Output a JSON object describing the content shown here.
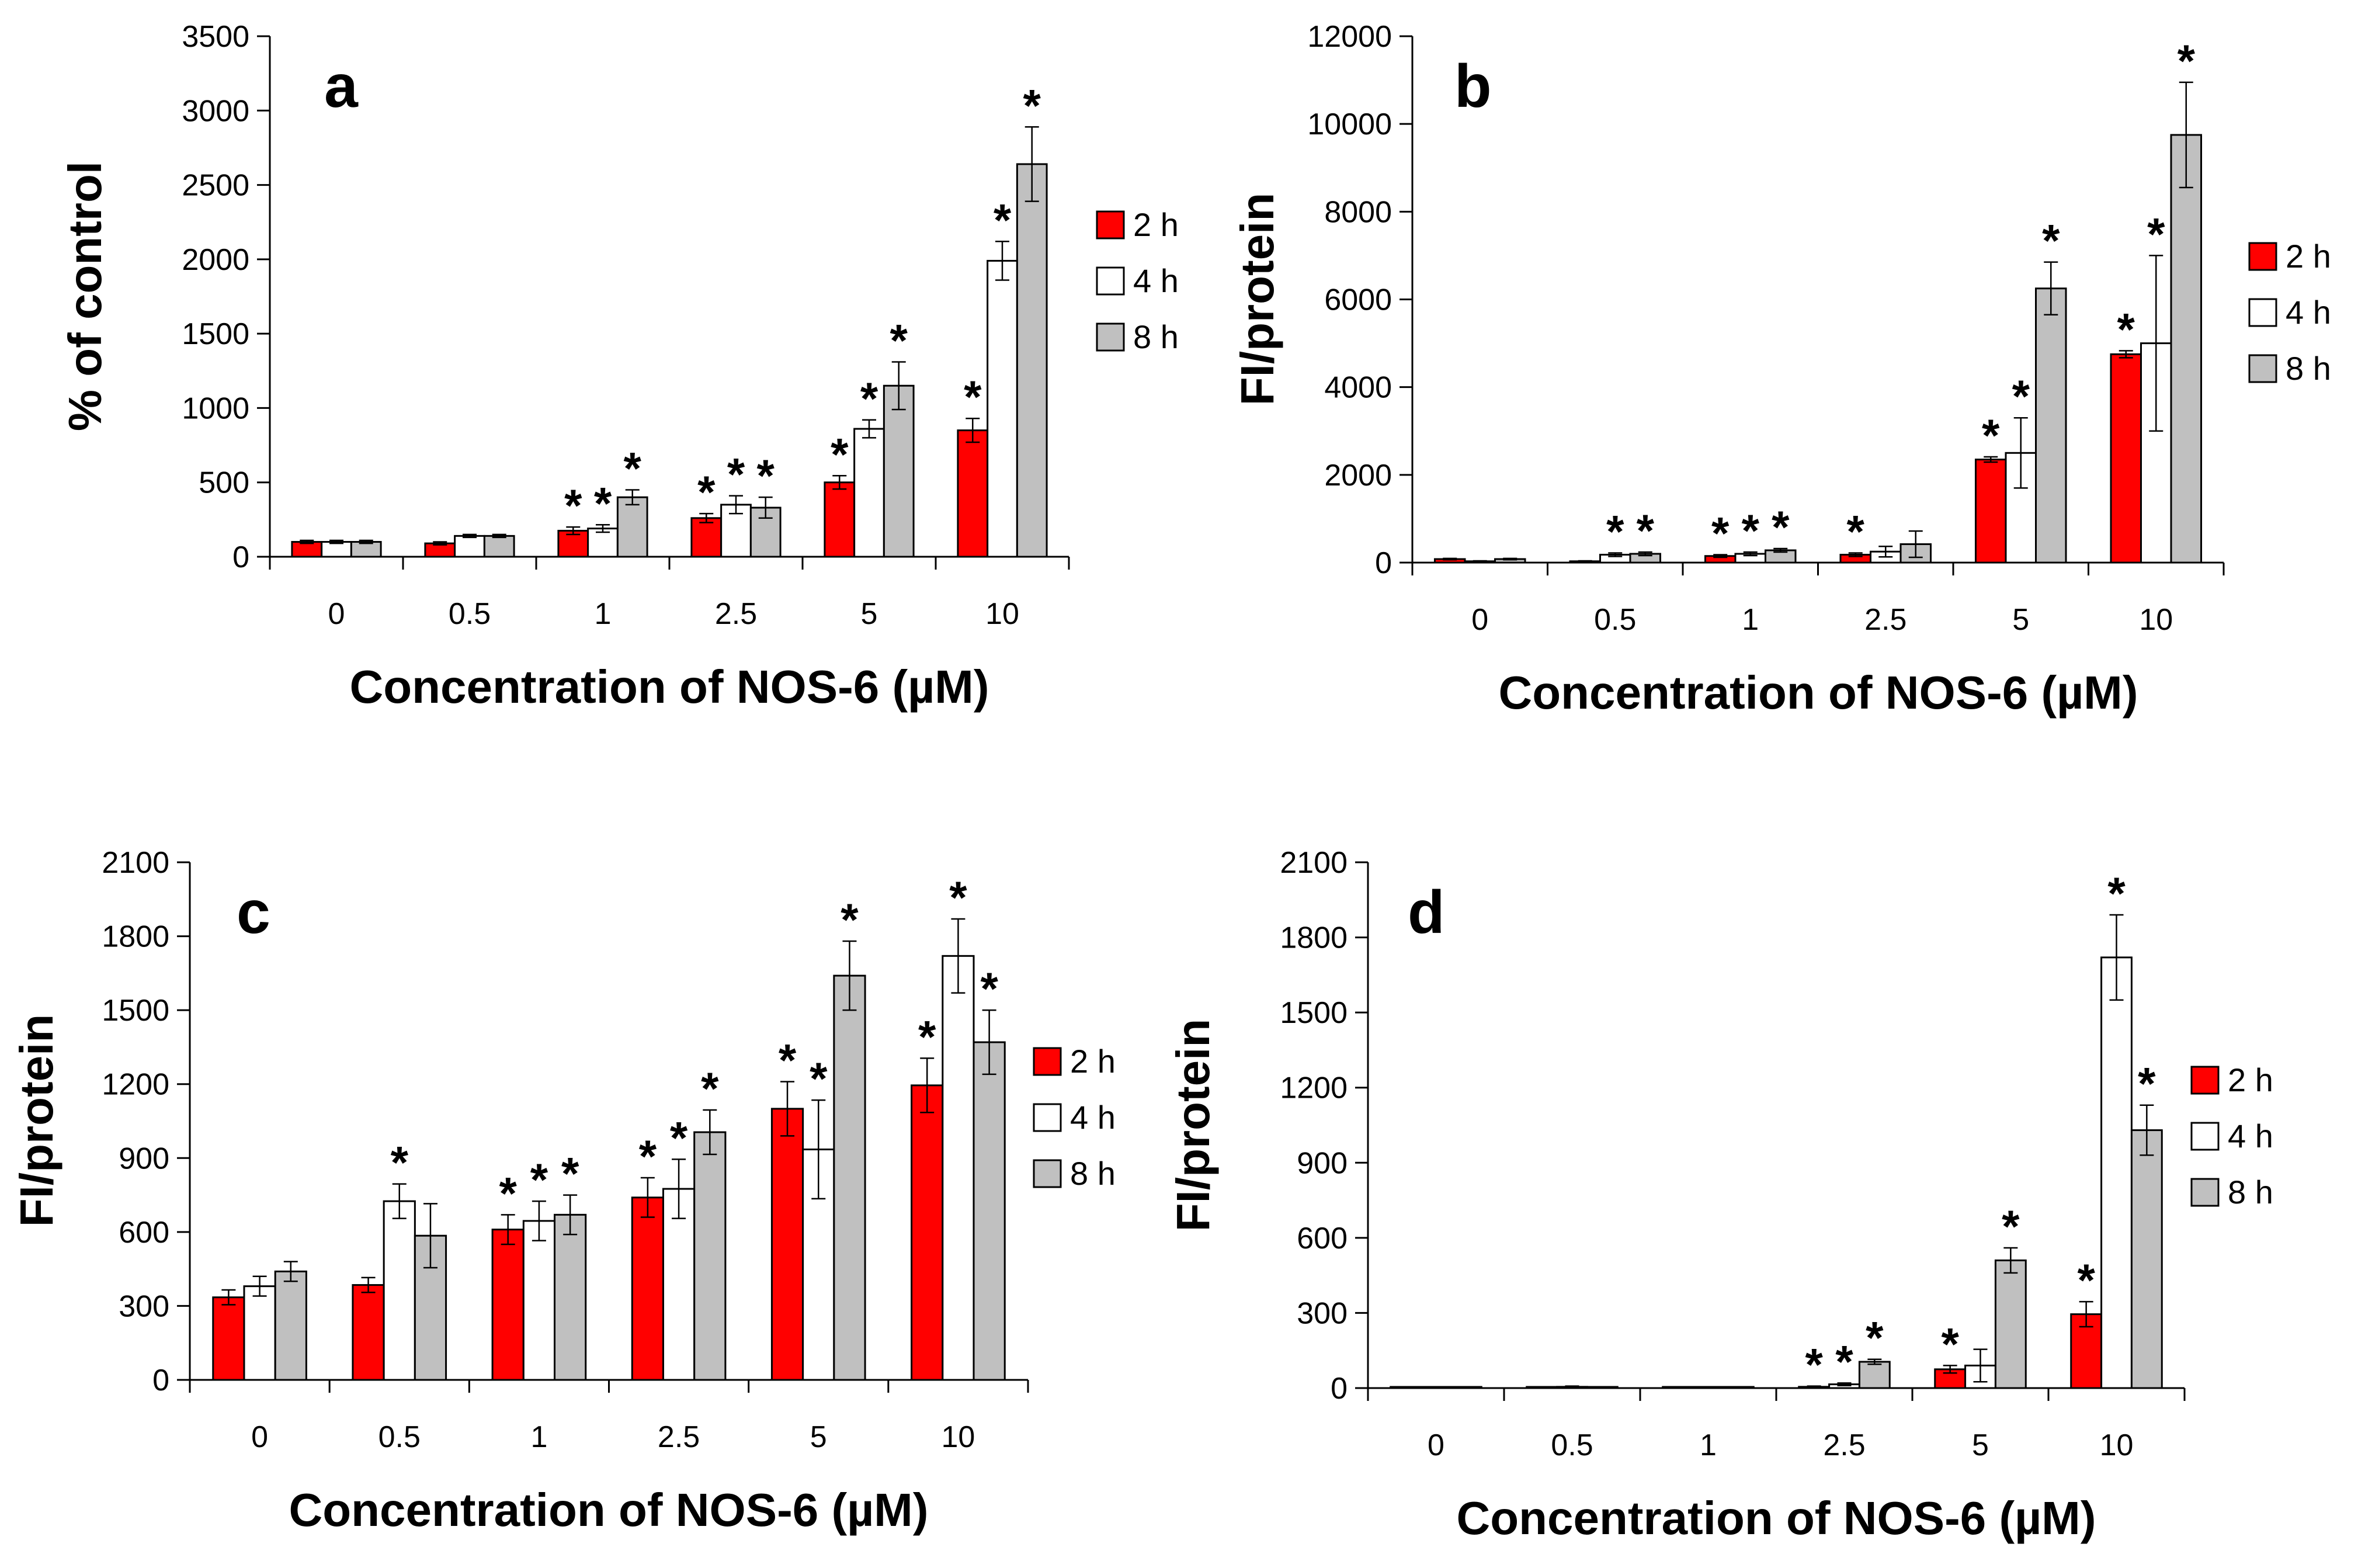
{
  "colors": {
    "2 h": "#ff0000",
    "4 h": "#ffffff",
    "8 h": "#c0c0c0"
  },
  "chart_data": [
    {
      "type": "bar",
      "panel": "a",
      "categories": [
        "0",
        "0.5",
        "1",
        "2.5",
        "5",
        "10"
      ],
      "xlabel": "Concentration of NOS-6 (µM)",
      "ylabel": "%  of control",
      "ylim": [
        0,
        3500
      ],
      "yticks": [
        "0",
        "500",
        "1000",
        "1500",
        "2000",
        "2500",
        "3000",
        "3500"
      ],
      "series": [
        {
          "name": "2 h",
          "values": [
            100,
            90,
            175,
            260,
            500,
            850
          ],
          "errors": [
            10,
            10,
            25,
            30,
            45,
            80
          ],
          "significant": [
            false,
            false,
            true,
            true,
            true,
            true
          ]
        },
        {
          "name": "4 h",
          "values": [
            100,
            140,
            190,
            350,
            860,
            1990
          ],
          "errors": [
            10,
            10,
            25,
            60,
            60,
            130
          ],
          "significant": [
            false,
            false,
            true,
            true,
            true,
            true
          ]
        },
        {
          "name": "8 h",
          "values": [
            100,
            140,
            400,
            330,
            1150,
            2640
          ],
          "errors": [
            10,
            10,
            50,
            70,
            160,
            250
          ],
          "significant": [
            false,
            false,
            true,
            true,
            true,
            true
          ]
        }
      ]
    },
    {
      "type": "bar",
      "panel": "b",
      "categories": [
        "0",
        "0.5",
        "1",
        "2.5",
        "5",
        "10"
      ],
      "xlabel": "Concentration of NOS-6 (µM)",
      "ylabel": "FI/protein",
      "ylim": [
        0,
        12000
      ],
      "yticks": [
        "0",
        "2000",
        "4000",
        "6000",
        "8000",
        "10000",
        "12000"
      ],
      "series": [
        {
          "name": "2 h",
          "values": [
            80,
            30,
            150,
            180,
            2350,
            4750
          ],
          "errors": [
            15,
            10,
            30,
            40,
            60,
            80
          ],
          "significant": [
            false,
            false,
            true,
            true,
            true,
            true
          ]
        },
        {
          "name": "4 h",
          "values": [
            30,
            180,
            200,
            250,
            2500,
            5000
          ],
          "errors": [
            10,
            40,
            40,
            120,
            800,
            2000
          ],
          "significant": [
            false,
            true,
            true,
            false,
            true,
            true
          ]
        },
        {
          "name": "8 h",
          "values": [
            80,
            200,
            280,
            420,
            6250,
            9750
          ],
          "errors": [
            15,
            40,
            40,
            300,
            600,
            1200
          ],
          "significant": [
            false,
            true,
            true,
            false,
            true,
            true
          ]
        }
      ]
    },
    {
      "type": "bar",
      "panel": "c",
      "categories": [
        "0",
        "0.5",
        "1",
        "2.5",
        "5",
        "10"
      ],
      "xlabel": "Concentration of NOS-6 (µM)",
      "ylabel": "FI/protein",
      "ylim": [
        0,
        2100
      ],
      "yticks": [
        "0",
        "300",
        "600",
        "900",
        "1200",
        "1500",
        "1800",
        "2100"
      ],
      "series": [
        {
          "name": "2 h",
          "values": [
            335,
            385,
            610,
            740,
            1100,
            1195
          ],
          "errors": [
            30,
            30,
            60,
            80,
            110,
            110
          ],
          "significant": [
            false,
            false,
            true,
            true,
            true,
            true
          ]
        },
        {
          "name": "4 h",
          "values": [
            380,
            725,
            645,
            775,
            935,
            1720
          ],
          "errors": [
            40,
            70,
            80,
            120,
            200,
            150
          ],
          "significant": [
            false,
            true,
            true,
            true,
            true,
            true
          ]
        },
        {
          "name": "8 h",
          "values": [
            440,
            585,
            670,
            1005,
            1640,
            1370
          ],
          "errors": [
            40,
            130,
            80,
            90,
            140,
            130
          ],
          "significant": [
            false,
            false,
            true,
            true,
            true,
            true
          ]
        }
      ]
    },
    {
      "type": "bar",
      "panel": "d",
      "categories": [
        "0",
        "0.5",
        "1",
        "2.5",
        "5",
        "10"
      ],
      "xlabel": "Concentration of NOS-6 (µM)",
      "ylabel": "FI/protein",
      "ylim": [
        0,
        2100
      ],
      "yticks": [
        "0",
        "300",
        "600",
        "900",
        "1200",
        "1500",
        "1800",
        "2100"
      ],
      "series": [
        {
          "name": "2 h",
          "values": [
            3,
            3,
            3,
            5,
            75,
            295
          ],
          "errors": [
            1,
            1,
            1,
            3,
            15,
            50
          ],
          "significant": [
            false,
            false,
            false,
            true,
            true,
            true
          ]
        },
        {
          "name": "4 h",
          "values": [
            3,
            5,
            3,
            15,
            90,
            1720
          ],
          "errors": [
            1,
            3,
            1,
            5,
            65,
            170
          ],
          "significant": [
            false,
            false,
            false,
            true,
            false,
            true
          ]
        },
        {
          "name": "8 h",
          "values": [
            3,
            3,
            3,
            105,
            510,
            1030
          ],
          "errors": [
            1,
            1,
            1,
            10,
            50,
            100
          ],
          "significant": [
            false,
            false,
            false,
            true,
            true,
            true
          ]
        }
      ]
    }
  ]
}
